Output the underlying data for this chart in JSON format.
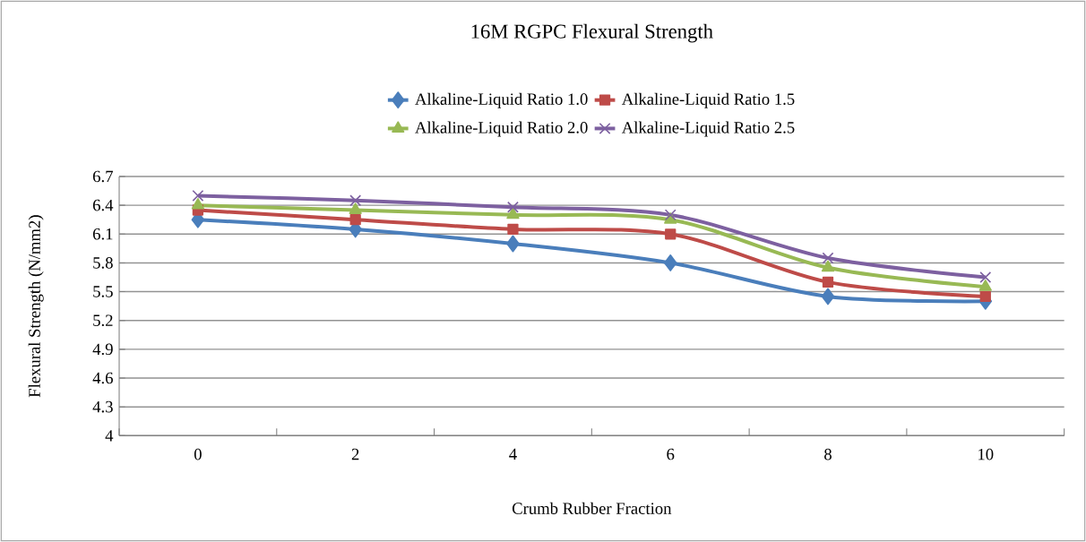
{
  "chart_data": {
    "type": "line",
    "title": "16M RGPC Flexural Strength",
    "xlabel": "Crumb Rubber Fraction",
    "ylabel": "Flexural Strength (N/mm2)",
    "categories": [
      "0",
      "2",
      "4",
      "6",
      "8",
      "10"
    ],
    "series": [
      {
        "name": "Alkaline-Liquid Ratio 1.0",
        "color": "#4a7ebb",
        "marker": "diamond",
        "values": [
          6.25,
          6.15,
          6.0,
          5.8,
          5.45,
          5.4
        ]
      },
      {
        "name": "Alkaline-Liquid Ratio 1.5",
        "color": "#be4b48",
        "marker": "square",
        "values": [
          6.35,
          6.25,
          6.15,
          6.1,
          5.6,
          5.45
        ]
      },
      {
        "name": "Alkaline-Liquid Ratio 2.0",
        "color": "#98b954",
        "marker": "triangle",
        "values": [
          6.4,
          6.35,
          6.3,
          6.25,
          5.75,
          5.55
        ]
      },
      {
        "name": "Alkaline-Liquid Ratio 2.5",
        "color": "#7d60a0",
        "marker": "cross",
        "values": [
          6.5,
          6.45,
          6.38,
          6.3,
          5.85,
          5.65
        ]
      }
    ],
    "ylim": [
      4,
      6.7
    ],
    "yticks": [
      4,
      4.3,
      4.6,
      4.9,
      5.2,
      5.5,
      5.8,
      6.1,
      6.4,
      6.7
    ],
    "grid": "y",
    "legend": "top",
    "line_style": "solid"
  }
}
